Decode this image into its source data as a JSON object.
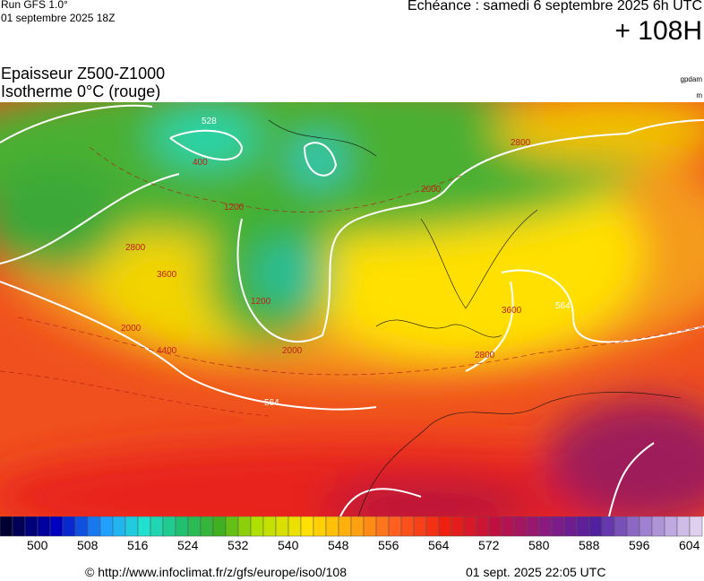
{
  "header": {
    "run": "Run GFS 1.0°",
    "run_date": "01 septembre 2025 18Z",
    "valid": "Echéance : samedi 6 septembre 2025 6h UTC",
    "lead": "+ 108H"
  },
  "legend": {
    "title1": "Epaisseur Z500-Z1000",
    "title2": "Isotherme 0°C (rouge)",
    "unit1": "gpdam",
    "unit2": "m"
  },
  "map": {
    "contour_labels": [
      "528",
      "400",
      "1200",
      "2000",
      "2800",
      "3600",
      "4400",
      "564",
      "1200",
      "2000",
      "2800",
      "3600",
      "564",
      "2800",
      "2000"
    ]
  },
  "colorbar": {
    "labels": [
      500,
      508,
      516,
      524,
      532,
      540,
      548,
      556,
      564,
      572,
      580,
      588,
      596,
      604
    ]
  },
  "footer": {
    "source": "© http://www.infoclimat.fr/z/gfs/europe/iso0/108",
    "generated": "01 sept. 2025 22:05 UTC"
  }
}
